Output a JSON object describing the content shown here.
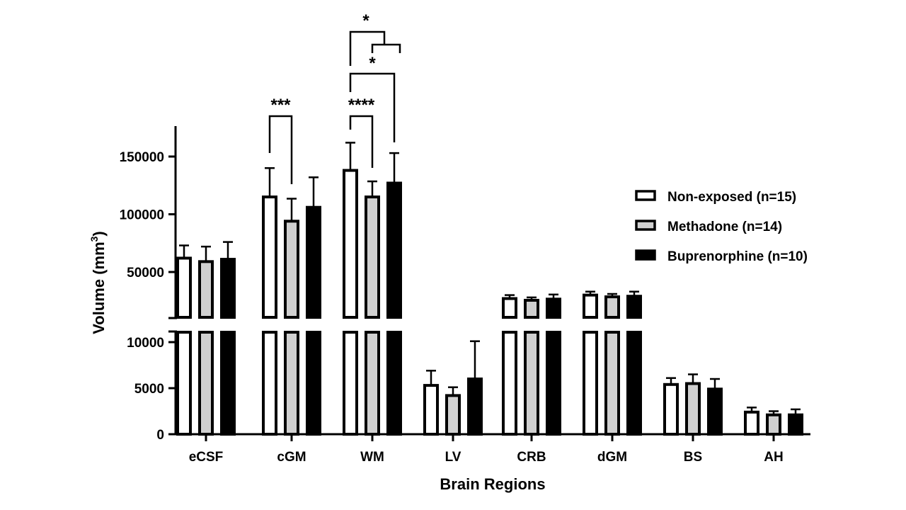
{
  "chart_data": {
    "type": "bar",
    "xlabel": "Brain  Regions",
    "ylabel": "Volume (mm",
    "ylabel_sup": "3",
    "ylabel_close": ")",
    "categories": [
      "eCSF",
      "cGM",
      "WM",
      "LV",
      "CRB",
      "dGM",
      "BS",
      "AH"
    ],
    "y_axis_break": {
      "lower_range": [
        0,
        11000
      ],
      "upper_range": [
        24000,
        175000
      ]
    },
    "y_ticks_lower": [
      "0",
      "5000",
      "10000"
    ],
    "y_ticks_upper": [
      "50000",
      "100000",
      "150000"
    ],
    "legend_position": "right",
    "series": [
      {
        "name": "Non-exposed (n=15)",
        "color": "#ffffff",
        "values": [
          62000,
          115000,
          138000,
          5300,
          27000,
          30000,
          5400,
          2400
        ],
        "errors": [
          11000,
          25000,
          24000,
          1600,
          3000,
          3000,
          700,
          500
        ]
      },
      {
        "name": "Methadone (n=14)",
        "color": "#d0d0d0",
        "values": [
          59000,
          94000,
          115000,
          4200,
          25500,
          28500,
          5500,
          2100
        ],
        "errors": [
          13000,
          19500,
          13500,
          900,
          2500,
          2500,
          1000,
          400
        ]
      },
      {
        "name": "Buprenorphine (n=10)",
        "color": "#000000",
        "values": [
          61000,
          106000,
          127000,
          6000,
          26500,
          29000,
          4900,
          2100
        ],
        "errors": [
          15000,
          26000,
          26000,
          4100,
          4000,
          4000,
          1100,
          600
        ]
      }
    ],
    "significance": [
      {
        "label": "***",
        "category": "cGM",
        "from_series": 0,
        "to_series": 1
      },
      {
        "label": "****",
        "category": "WM",
        "from_series": 0,
        "to_series": 1
      },
      {
        "label": "*",
        "category": "WM",
        "from_series": 0,
        "to_series": 2
      },
      {
        "label": "*",
        "category": "WM",
        "from_series": 0,
        "to_series": "1-2 group"
      }
    ]
  }
}
